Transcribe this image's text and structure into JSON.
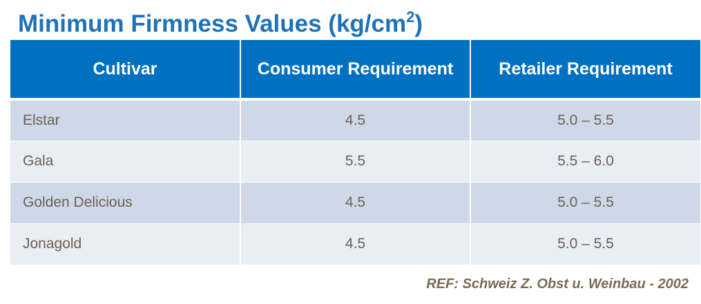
{
  "title": {
    "text": "Minimum Firmness Values (kg/cm",
    "superscript": "2",
    "suffix": ")"
  },
  "table": {
    "headers": [
      "Cultivar",
      "Consumer Requirement",
      "Retailer Requirement"
    ],
    "rows": [
      [
        "Elstar",
        "4.5",
        "5.0 – 5.5"
      ],
      [
        "Gala",
        "5.5",
        "5.5 – 6.0"
      ],
      [
        "Golden Delicious",
        "4.5",
        "5.0 – 5.5"
      ],
      [
        "Jonagold",
        "4.5",
        "5.0 – 5.5"
      ]
    ]
  },
  "reference": "REF: Schweiz Z. Obst u. Weinbau - 2002",
  "colors": {
    "title": "#1f71b8",
    "header_bg": "#0070c0",
    "row_dark": "#cfd8e8",
    "row_light": "#e9edf4",
    "body_text": "#6b6150"
  }
}
